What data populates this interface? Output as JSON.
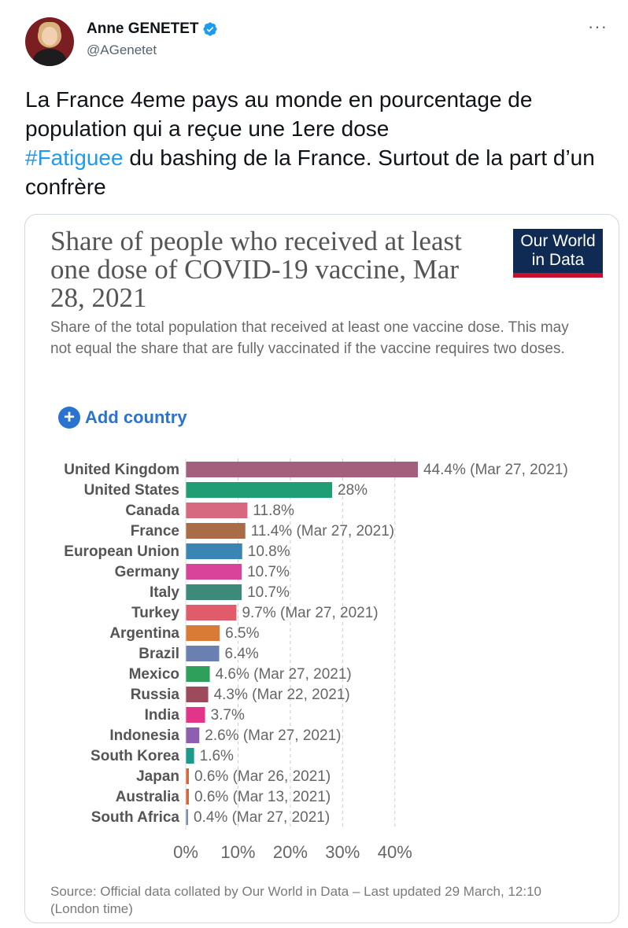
{
  "tweet": {
    "author_name": "Anne GENETET",
    "author_handle": "@AGenetet",
    "more_label": "···",
    "text_line1": "La France 4eme pays au monde en pourcentage de population qui a reçue une 1ere dose",
    "hashtag": "#Fatiguee",
    "text_line2": " du bashing de la France. Surtout de la part d’un confrère",
    "verified_icon": "verified-badge-icon",
    "accent_color": "#1d9bf0"
  },
  "owid": {
    "title": "Share of people who received at least one dose of COVID-19 vaccine, Mar 28, 2021",
    "subtitle": "Share of the total population that received at least one vaccine dose. This may not equal the share that are fully vaccinated if the vaccine requires two doses.",
    "logo_line1": "Our World",
    "logo_line2": "in Data",
    "add_country_label": "Add country",
    "source": "Source: Official data collated by Our World in Data – Last updated 29 March, 12:10 (London time)"
  },
  "chart_data": {
    "type": "bar",
    "orientation": "horizontal",
    "title": "Share of people who received at least one dose of COVID-19 vaccine, Mar 28, 2021",
    "xlim": [
      0,
      44.4
    ],
    "xticks": [
      "0%",
      "10%",
      "20%",
      "30%",
      "40%"
    ],
    "xtick_values": [
      0,
      10,
      20,
      30,
      40
    ],
    "grid": true,
    "categories": [
      "United Kingdom",
      "United States",
      "Canada",
      "France",
      "European Union",
      "Germany",
      "Italy",
      "Turkey",
      "Argentina",
      "Brazil",
      "Mexico",
      "Russia",
      "India",
      "Indonesia",
      "South Korea",
      "Japan",
      "Australia",
      "South Africa"
    ],
    "values": [
      44.4,
      28,
      11.8,
      11.4,
      10.8,
      10.7,
      10.7,
      9.7,
      6.5,
      6.4,
      4.6,
      4.3,
      3.7,
      2.6,
      1.6,
      0.6,
      0.6,
      0.4
    ],
    "labels": [
      "44.4% (Mar 27, 2021)",
      "28%",
      "11.8%",
      "11.4% (Mar 27, 2021)",
      "10.8%",
      "10.7%",
      "10.7%",
      "9.7% (Mar 27, 2021)",
      "6.5%",
      "6.4%",
      "4.6% (Mar 27, 2021)",
      "4.3% (Mar 22, 2021)",
      "3.7%",
      "2.6% (Mar 27, 2021)",
      "1.6%",
      "0.6% (Mar 26, 2021)",
      "0.6% (Mar 13, 2021)",
      "0.4% (Mar 27, 2021)"
    ],
    "colors": [
      "#a2607e",
      "#1f9e76",
      "#d6697f",
      "#a86c46",
      "#3a85b3",
      "#d9449b",
      "#3e8a7a",
      "#e05c6b",
      "#d97a36",
      "#6a80b1",
      "#2ea05c",
      "#9c4a5c",
      "#e2358a",
      "#8e5fb0",
      "#1c9b8c",
      "#d9663a",
      "#d9663a",
      "#7a8fa8"
    ]
  }
}
